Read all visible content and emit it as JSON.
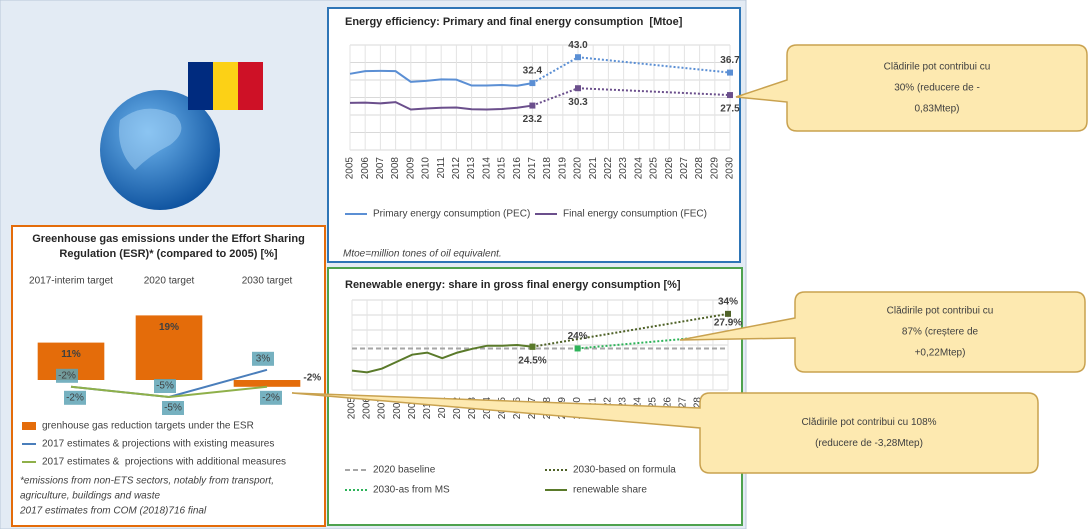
{
  "chart_data": [
    {
      "type": "combo",
      "title": "Greenhouse gas emissions under the Effort Sharing Regulation (ESR)* (compared to 2005) [%]",
      "categories": [
        "2017-interim target",
        "2020 target",
        "2030 target"
      ],
      "series": [
        {
          "name": "grenhouse gas reduction targets under the ESR",
          "type": "bar",
          "color": "#e46c0a",
          "values": [
            11,
            19,
            -2
          ],
          "value_labels": [
            "11%",
            "19%",
            "-2%"
          ]
        },
        {
          "name": "2017 estimates & projections with existing measures",
          "type": "line",
          "color": "#4a7ebb",
          "values": [
            -2,
            -5,
            3
          ],
          "value_labels": [
            "-2%",
            "-5%",
            "3%"
          ]
        },
        {
          "name": "2017 estimates &  projections with additional measures",
          "type": "line",
          "color": "#8fb04a",
          "values": [
            -2,
            -5,
            -2
          ],
          "value_labels": [
            "-2%",
            "-5%",
            "-2%"
          ]
        }
      ],
      "ylim": [
        -10,
        25
      ],
      "notes": [
        "*emissions from non-ETS sectors, notably from transport,",
        "agriculture, buildings and waste",
        "2017 estimates from COM (2018)716 final"
      ]
    },
    {
      "type": "line",
      "title": "Energy efficiency: Primary and final energy consumption  [Mtoe]",
      "x": [
        2005,
        2006,
        2007,
        2008,
        2009,
        2010,
        2011,
        2012,
        2013,
        2014,
        2015,
        2016,
        2017,
        2018,
        2019,
        2020,
        2021,
        2022,
        2023,
        2024,
        2025,
        2026,
        2027,
        2028,
        2029,
        2030
      ],
      "xlim": [
        2005,
        2030
      ],
      "xticks": [
        2005,
        2006,
        2007,
        2008,
        2009,
        2010,
        2011,
        2012,
        2013,
        2014,
        2015,
        2016,
        2017,
        2018,
        2019,
        2020,
        2021,
        2022,
        2023,
        2024,
        2025,
        2026,
        2027,
        2028,
        2029,
        2030
      ],
      "ylim": [
        5,
        48
      ],
      "grid": true,
      "series": [
        {
          "name": "Primary energy consumption (PEC)",
          "color": "#5b8fd4",
          "line_style": "solid",
          "values": [
            36.2,
            37.3,
            37.4,
            37.3,
            32.9,
            33.3,
            33.9,
            33.8,
            31.4,
            31.4,
            31.6,
            31.3,
            32.4,
            null,
            null,
            43.0,
            null,
            null,
            null,
            null,
            null,
            null,
            null,
            null,
            null,
            36.7
          ],
          "value_labels": [
            null,
            null,
            null,
            null,
            null,
            null,
            null,
            null,
            null,
            null,
            null,
            null,
            "32.4",
            null,
            null,
            "43.0",
            null,
            null,
            null,
            null,
            null,
            null,
            null,
            null,
            null,
            "36.7"
          ]
        },
        {
          "name": "Final energy consumption (FEC)",
          "color": "#6b4f8c",
          "line_style": "solid",
          "values": [
            24.3,
            24.4,
            24.1,
            24.6,
            21.6,
            22.0,
            22.3,
            22.4,
            21.7,
            21.6,
            21.8,
            22.3,
            23.2,
            null,
            null,
            30.3,
            null,
            null,
            null,
            null,
            null,
            null,
            null,
            null,
            null,
            27.5
          ],
          "value_labels": [
            null,
            null,
            null,
            null,
            null,
            null,
            null,
            null,
            null,
            null,
            null,
            null,
            "23.2",
            null,
            null,
            "30.3",
            null,
            null,
            null,
            null,
            null,
            null,
            null,
            null,
            null,
            "27.5"
          ]
        }
      ],
      "note": "Mtoe=million tones of oil equivalent."
    },
    {
      "type": "line",
      "title": "Renewable energy: share in gross final energy consumption [%]",
      "x": [
        2005,
        2006,
        2007,
        2008,
        2009,
        2010,
        2011,
        2012,
        2013,
        2014,
        2015,
        2016,
        2017,
        2018,
        2019,
        2020,
        2021,
        2022,
        2023,
        2024,
        2025,
        2026,
        2027,
        2028,
        2029,
        2030
      ],
      "xlim": [
        2005,
        2030
      ],
      "xticks": [
        2005,
        2006,
        2007,
        2008,
        2009,
        2010,
        2011,
        2012,
        2013,
        2014,
        2015,
        2016,
        2017,
        2018,
        2019,
        2020,
        2021,
        2022,
        2023,
        2024,
        2025,
        2026,
        2027,
        2028,
        2029,
        2030
      ],
      "ylim": [
        12,
        38
      ],
      "grid": true,
      "series": [
        {
          "name": "2020 baseline",
          "color": "#a6a6a6",
          "line_style": "dashed",
          "values": [
            24,
            24,
            24,
            24,
            24,
            24,
            24,
            24,
            24,
            24,
            24,
            24,
            24,
            24,
            24,
            24,
            24,
            24,
            24,
            24,
            24,
            24,
            24,
            24,
            24,
            24
          ]
        },
        {
          "name": "2030-based on formula",
          "color": "#4f6228",
          "line_style": "dotted",
          "values": [
            null,
            null,
            null,
            null,
            null,
            null,
            null,
            null,
            null,
            null,
            null,
            null,
            24.5,
            null,
            null,
            null,
            null,
            null,
            null,
            null,
            null,
            null,
            null,
            null,
            null,
            34
          ],
          "value_labels": [
            null,
            null,
            null,
            null,
            null,
            null,
            null,
            null,
            null,
            null,
            null,
            null,
            null,
            null,
            null,
            null,
            null,
            null,
            null,
            null,
            null,
            null,
            null,
            null,
            null,
            "34%"
          ]
        },
        {
          "name": "2030-as from MS",
          "color": "#2eb35a",
          "line_style": "dotted",
          "values": [
            null,
            null,
            null,
            null,
            null,
            null,
            null,
            null,
            null,
            null,
            null,
            null,
            null,
            null,
            null,
            24,
            null,
            null,
            null,
            null,
            null,
            null,
            null,
            null,
            null,
            27.9
          ],
          "value_labels": [
            null,
            null,
            null,
            null,
            null,
            null,
            null,
            null,
            null,
            null,
            null,
            null,
            null,
            null,
            null,
            "24%",
            null,
            null,
            null,
            null,
            null,
            null,
            null,
            null,
            null,
            "27.9%"
          ]
        },
        {
          "name": "renewable share",
          "color": "#5a7a2a",
          "line_style": "solid",
          "values": [
            17.6,
            17.1,
            18.2,
            20.2,
            22.2,
            22.8,
            21.2,
            22.8,
            23.9,
            24.8,
            24.8,
            25.0,
            24.5,
            null,
            null,
            null,
            null,
            null,
            null,
            null,
            null,
            null,
            null,
            null,
            null,
            null
          ],
          "value_labels": [
            null,
            null,
            null,
            null,
            null,
            null,
            null,
            null,
            null,
            null,
            null,
            null,
            "24.5%",
            null,
            null,
            null,
            null,
            null,
            null,
            null,
            null,
            null,
            null,
            null,
            null,
            null
          ]
        }
      ]
    }
  ],
  "callouts": [
    {
      "lines": [
        "Clădirile pot contribui cu",
        "30% (reducere de -",
        "0,83Mtep)"
      ]
    },
    {
      "lines": [
        "Clădirile pot contribui cu",
        "87% (creștere de",
        "+0,22Mtep)"
      ]
    },
    {
      "lines": [
        "Clădirile pot contribui cu 108%",
        "(reducere de -3,28Mtep)"
      ]
    }
  ]
}
